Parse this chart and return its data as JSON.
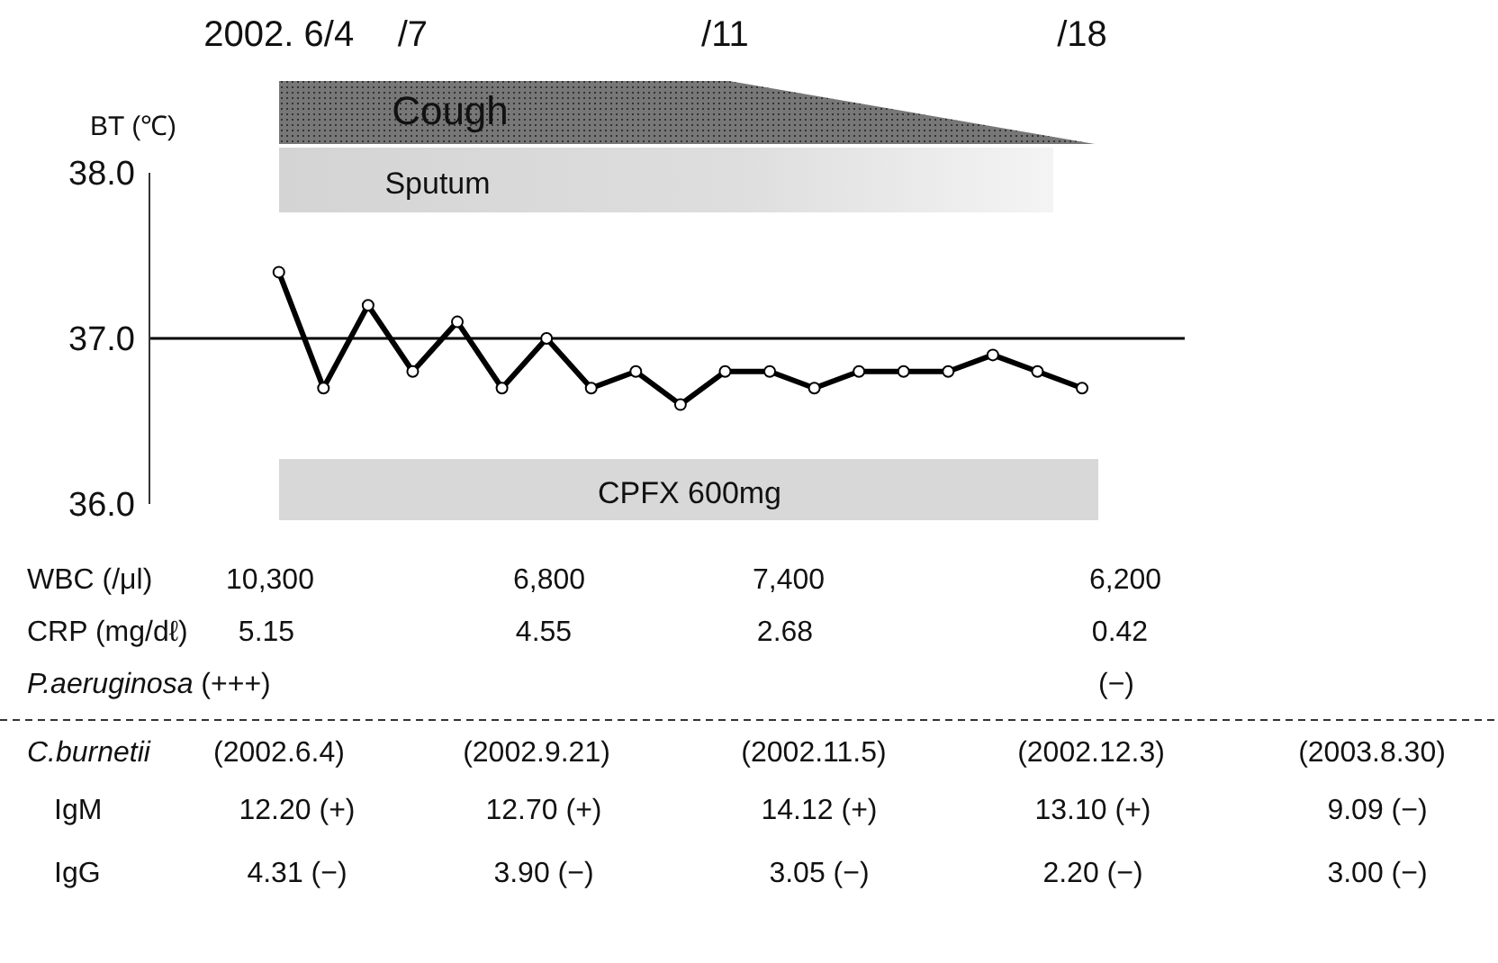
{
  "chart_data": {
    "type": "line",
    "ylabel": "BT (℃)",
    "categories": [
      "2002. 6/4",
      null,
      null,
      "/7",
      null,
      null,
      null,
      null,
      null,
      null,
      "/11",
      null,
      null,
      null,
      null,
      null,
      null,
      null,
      "/18"
    ],
    "series": [
      {
        "color": "#000000",
        "values": [
          37.4,
          36.7,
          37.2,
          36.8,
          37.1,
          36.7,
          37.0,
          36.7,
          36.8,
          36.6,
          36.8,
          36.8,
          36.7,
          36.8,
          36.8,
          36.8,
          36.9,
          36.8,
          36.7
        ]
      }
    ],
    "marker": "circle",
    "line_style": "solid",
    "ylim": [
      36,
      38
    ],
    "yticks": [
      {
        "value": 36,
        "label": "36.0"
      },
      {
        "value": 37,
        "label": "37.0"
      },
      {
        "value": 38,
        "label": "38.0"
      }
    ],
    "ref_lines": [
      {
        "axis": "y",
        "value": 37,
        "color": "#000000"
      }
    ],
    "annotations": [
      "Cough",
      "Sputum",
      "CPFX 600mg",
      "WBC (/μl)",
      "10,300",
      "6,800",
      "7,400",
      "6,200",
      "CRP (mg/dℓ)",
      "5.15",
      "4.55",
      "2.68",
      "0.42",
      "P.aeruginosa (+++)",
      "(−)",
      "C.burnetii",
      "(2002.6.4)",
      "(2002.9.21)",
      "(2002.11.5)",
      "(2002.12.3)",
      "(2003.8.30)",
      "IgM",
      "12.20 (+)",
      "12.70 (+)",
      "14.12 (+)",
      "13.10 (+)",
      "9.09 (−)",
      "IgG",
      "4.31 (−)",
      "3.90 (−)",
      "3.05 (−)",
      "2.20 (−)",
      "3.00 (−)"
    ]
  }
}
